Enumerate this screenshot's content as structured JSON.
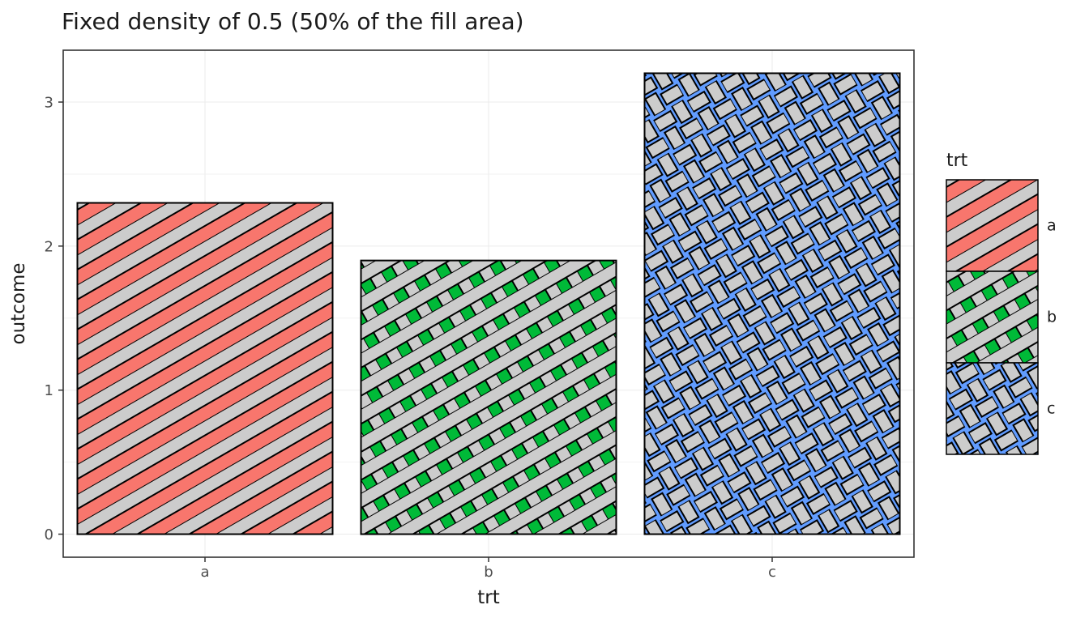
{
  "chart_data": {
    "type": "bar",
    "title": "Fixed density of 0.5 (50% of the fill area)",
    "categories": [
      "a",
      "b",
      "c"
    ],
    "values": [
      2.3,
      1.9,
      3.2
    ],
    "xlabel": "trt",
    "ylabel": "outcome",
    "ylim": [
      0,
      3.2
    ],
    "yticks": [
      0,
      1,
      2,
      3
    ],
    "bar_width_fraction": 0.9,
    "grid": true,
    "legend": {
      "title": "trt",
      "position": "right",
      "entries": [
        {
          "label": "a",
          "pattern": "stripe",
          "fill": "#F8766D"
        },
        {
          "label": "b",
          "pattern": "crosshatch",
          "fill": "#00BA38"
        },
        {
          "label": "c",
          "pattern": "weave",
          "fill": "#619CFF"
        }
      ]
    },
    "pattern_style": {
      "stripe_color": "#CCCCCC",
      "outline_color": "#000000",
      "angle_deg": 30,
      "density": 0.5
    },
    "style": {
      "panel_background": "#FFFFFF",
      "panel_border": "#333333",
      "grid_major_color": "#EBEBEB",
      "grid_minor_color": "#F2F2F2",
      "tick_color": "#333333",
      "tick_label_color": "#4D4D4D",
      "axis_title_color": "#1A1A1A",
      "bar_outline_color": "#000000"
    }
  }
}
